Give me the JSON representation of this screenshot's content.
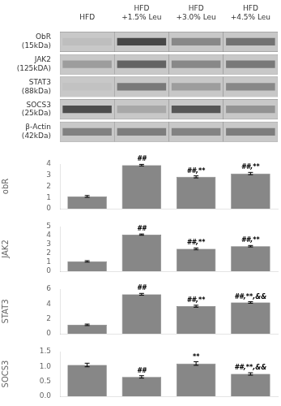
{
  "chart_data": [
    {
      "type": "heatmap",
      "categories": [
        "HFD",
        "HFD\n+1.5% Leu",
        "HFD\n+3.0% Leu",
        "HFD\n+4.5% Leu"
      ],
      "rows": [
        "ObR\n(15kDa)",
        "JAK2\n(125kDA)",
        "STAT3\n(88kDa)",
        "SOCS3\n(25kDa)",
        "β-Actin\n(42kDa)"
      ],
      "cells": [
        [
          0.3,
          0.85,
          0.55,
          0.65
        ],
        [
          0.45,
          0.72,
          0.55,
          0.62
        ],
        [
          0.28,
          0.62,
          0.45,
          0.55
        ],
        [
          0.82,
          0.4,
          0.78,
          0.5
        ],
        [
          0.58,
          0.6,
          0.57,
          0.6
        ]
      ]
    },
    {
      "type": "bar",
      "categories": [
        null,
        null,
        null,
        null
      ],
      "values": [
        1.1,
        3.9,
        2.85,
        3.15
      ],
      "errors": [
        0.08,
        0.07,
        0.09,
        0.1
      ],
      "annotations": [
        null,
        "##",
        "##,**",
        "##,**"
      ],
      "ylabel": "obR",
      "color": "#878787",
      "ylim": [
        0,
        4
      ],
      "yticks": [
        0,
        1,
        2,
        3,
        4
      ],
      "tick_labels": "y",
      "grid": false
    },
    {
      "type": "bar",
      "categories": [
        null,
        null,
        null,
        null
      ],
      "values": [
        1.1,
        4.1,
        2.5,
        2.8
      ],
      "errors": [
        0.08,
        0.07,
        0.1,
        0.08
      ],
      "annotations": [
        null,
        "##",
        "##,**",
        "##,**"
      ],
      "ylabel": "JAK2",
      "color": "#878787",
      "ylim": [
        0,
        5
      ],
      "yticks": [
        0,
        1,
        2,
        3,
        4,
        5
      ],
      "tick_labels": "y",
      "grid": false
    },
    {
      "type": "bar",
      "categories": [
        null,
        null,
        null,
        null
      ],
      "values": [
        1.2,
        5.3,
        3.7,
        4.2
      ],
      "errors": [
        0.1,
        0.12,
        0.13,
        0.1
      ],
      "annotations": [
        null,
        "##",
        "##,**",
        "##,**,&&"
      ],
      "ylabel": "STAT3",
      "color": "#878787",
      "ylim": [
        0,
        6
      ],
      "yticks": [
        0,
        2,
        4,
        6
      ],
      "tick_labels": "y",
      "grid": false
    },
    {
      "type": "bar",
      "categories": [
        null,
        null,
        null,
        null
      ],
      "values": [
        1.05,
        0.65,
        1.1,
        0.75
      ],
      "errors": [
        0.06,
        0.04,
        0.06,
        0.04
      ],
      "annotations": [
        null,
        "##",
        "**",
        "##,**,&&"
      ],
      "ylabel": "SOCS3",
      "color": "#878787",
      "ylim": [
        0,
        1.5
      ],
      "yticks": [
        {
          "value": 0,
          "label": "0.0"
        },
        0.5,
        {
          "value": 1.0,
          "label": "1.0"
        },
        1.5
      ],
      "tick_labels": "y",
      "grid": false
    }
  ]
}
